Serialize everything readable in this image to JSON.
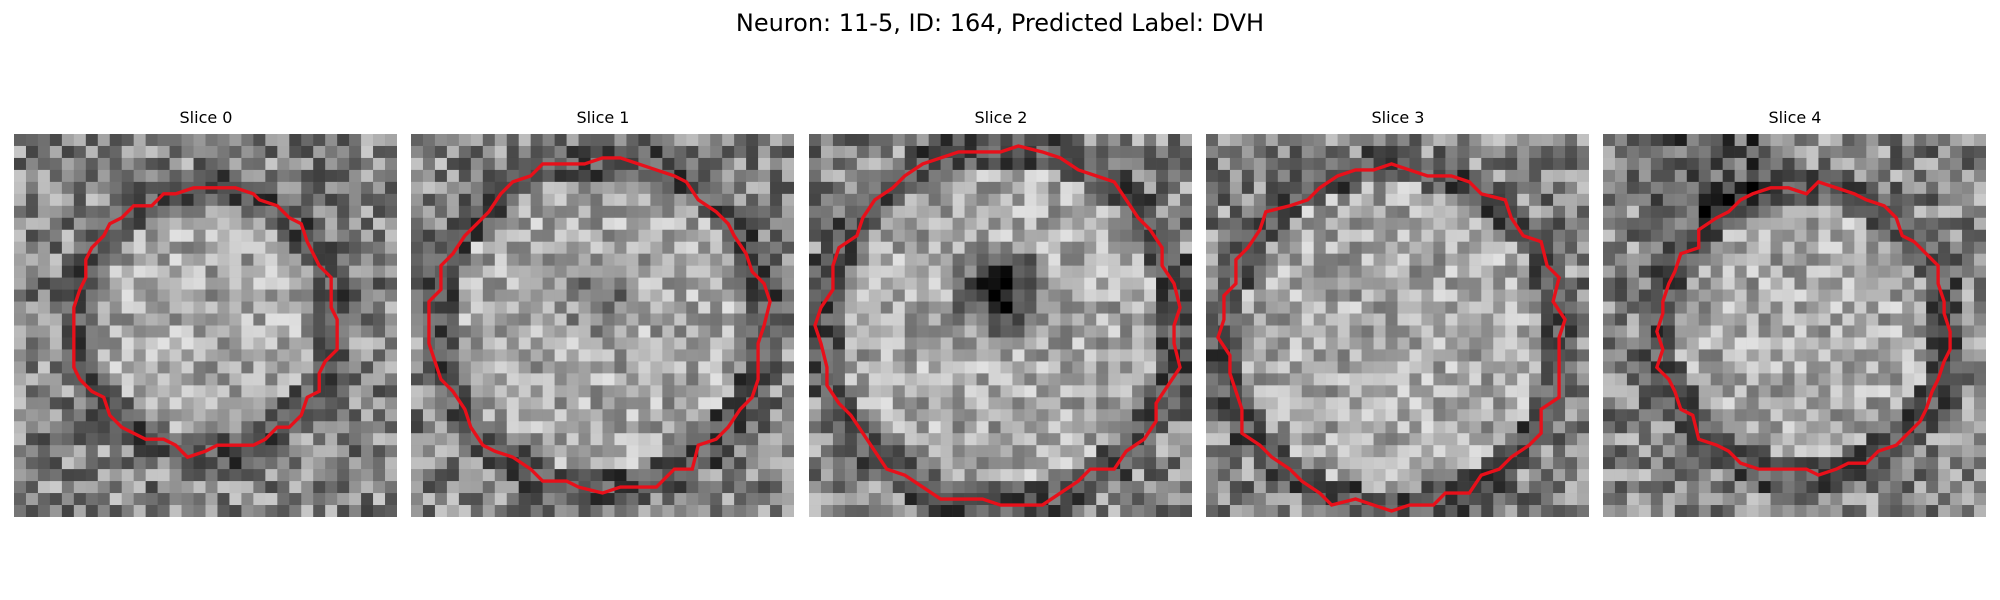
{
  "figure": {
    "suptitle": "Neuron: 11-5, ID: 164, Predicted Label: DVH"
  },
  "slices": [
    {
      "title": "Slice 0"
    },
    {
      "title": "Slice 1"
    },
    {
      "title": "Slice 2"
    },
    {
      "title": "Slice 3"
    },
    {
      "title": "Slice 4"
    }
  ],
  "style": {
    "contour_color": "#e8101a",
    "background": "#ffffff"
  }
}
